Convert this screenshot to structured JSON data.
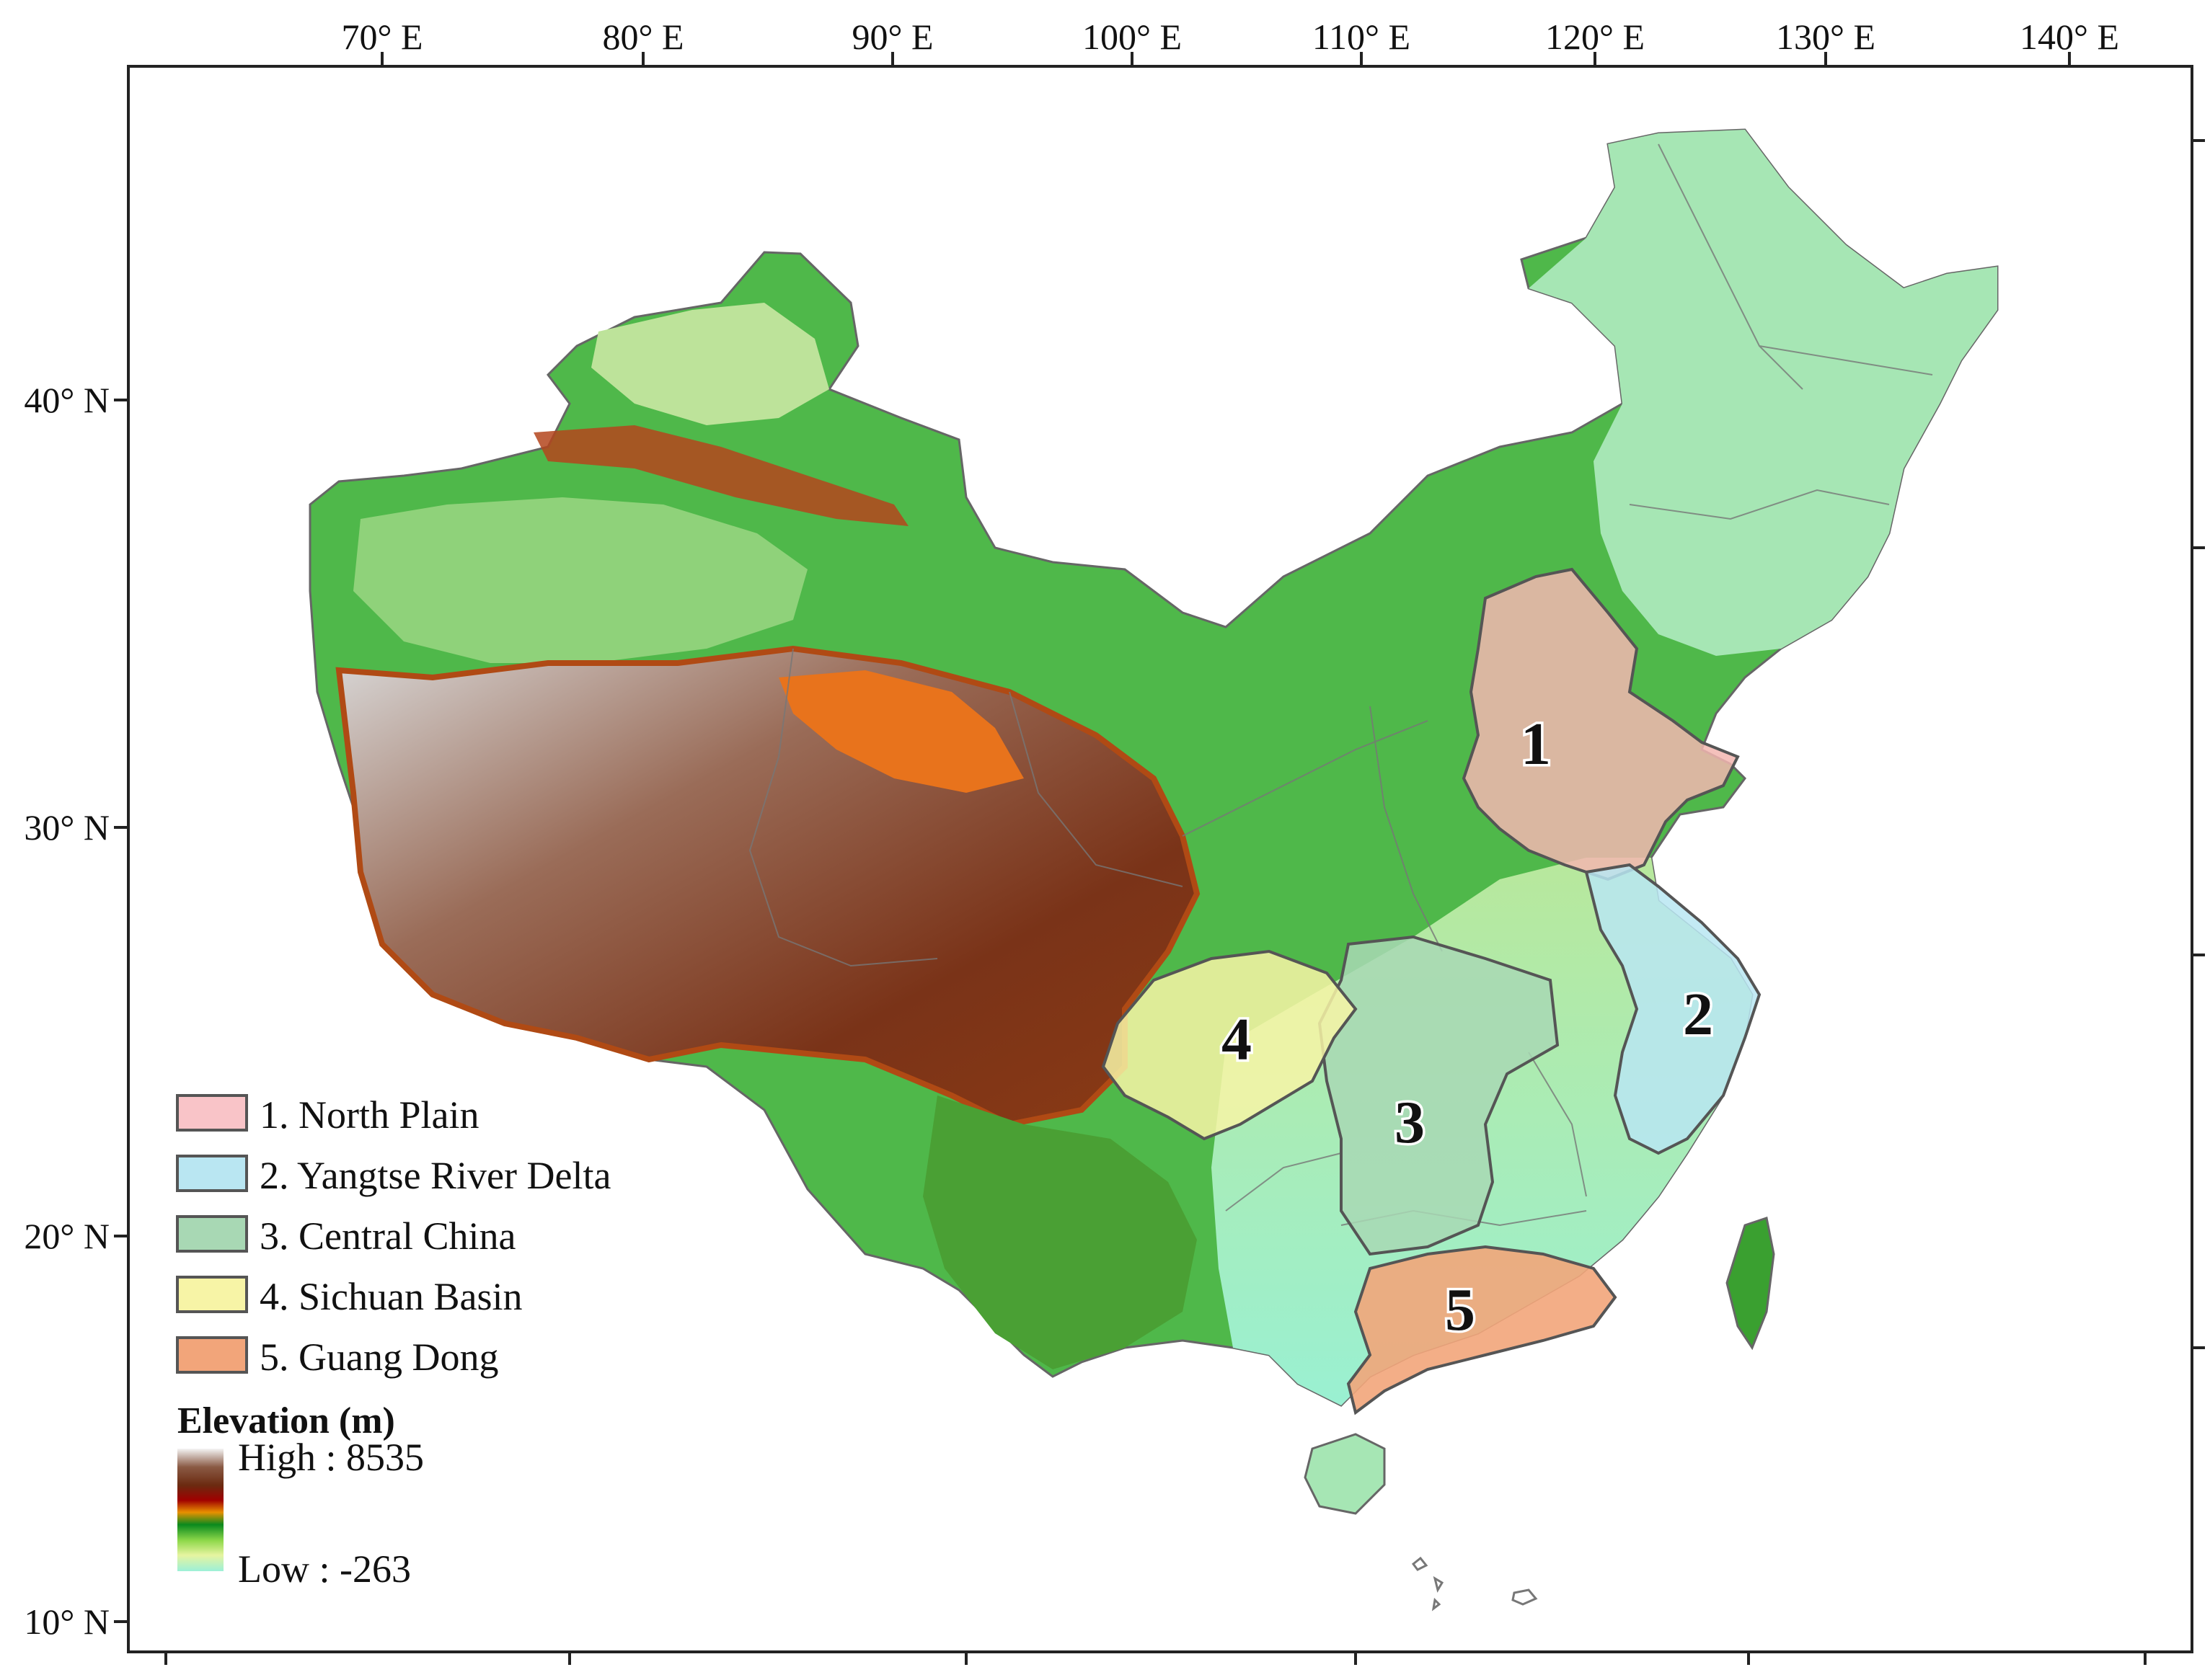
{
  "axes": {
    "top_ticks": [
      "70° E",
      "80° E",
      "90° E",
      "100° E",
      "110° E",
      "120° E",
      "130° E",
      "140° E"
    ],
    "left_ticks": [
      "40° N",
      "30° N",
      "20° N",
      "10° N"
    ]
  },
  "regions": [
    {
      "number": "1",
      "name": "North Plain",
      "legend_label": "1. North Plain",
      "color": "#f2b6b0"
    },
    {
      "number": "2",
      "name": "Yangtse River Delta",
      "legend_label": "2. Yangtse River Delta",
      "color": "#b9e6f2"
    },
    {
      "number": "3",
      "name": "Central China",
      "legend_label": "3. Central China",
      "color": "#a8d8b4"
    },
    {
      "number": "4",
      "name": "Sichuan Basin",
      "legend_label": "4. Sichuan Basin",
      "color": "#f7f4a6"
    },
    {
      "number": "5",
      "name": "Guang Dong",
      "legend_label": "5. Guang Dong",
      "color": "#f2a57a"
    }
  ],
  "elevation_legend": {
    "title": "Elevation (m)",
    "high_label": "High : 8535",
    "low_label": "Low : -263",
    "high_value": 8535,
    "low_value": -263,
    "ramp_colors": [
      "#f4f4f4",
      "#8a5a44",
      "#6b2a10",
      "#a00000",
      "#e89000",
      "#0a8a1e",
      "#8ed84a",
      "#e6f4a0",
      "#9cf0d8"
    ]
  },
  "colors": {
    "frame": "#222222",
    "province_border": "#777777"
  }
}
